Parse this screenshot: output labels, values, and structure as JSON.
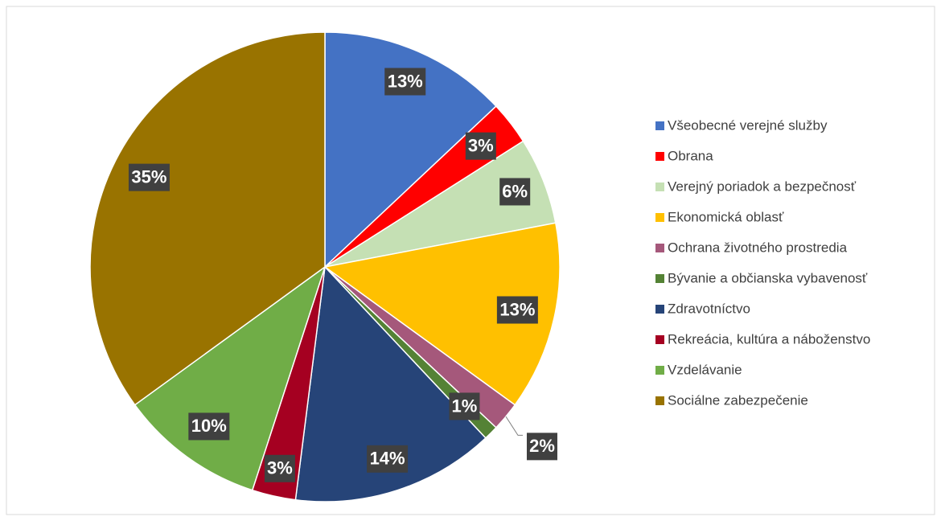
{
  "chart_data": {
    "type": "pie",
    "categories": [
      "Všeobecné verejné služby",
      "Obrana",
      "Verejný poriadok a bezpečnosť",
      "Ekonomická oblasť",
      "Ochrana životného prostredia",
      "Bývanie a občianska vybavenosť",
      "Zdravotníctvo",
      "Rekreácia, kultúra a náboženstvo",
      "Vzdelávanie",
      "Sociálne zabezpečenie"
    ],
    "values": [
      13,
      3,
      6,
      13,
      2,
      1,
      14,
      3,
      10,
      35
    ],
    "value_labels": [
      "13%",
      "3%",
      "6%",
      "13%",
      "2%",
      "1%",
      "14%",
      "3%",
      "10%",
      "35%"
    ],
    "colors": [
      "#4472c4",
      "#ff0000",
      "#c5e0b4",
      "#ffc000",
      "#a5587b",
      "#548235",
      "#264478",
      "#a50021",
      "#70ad47",
      "#997300"
    ],
    "legend": "right"
  }
}
